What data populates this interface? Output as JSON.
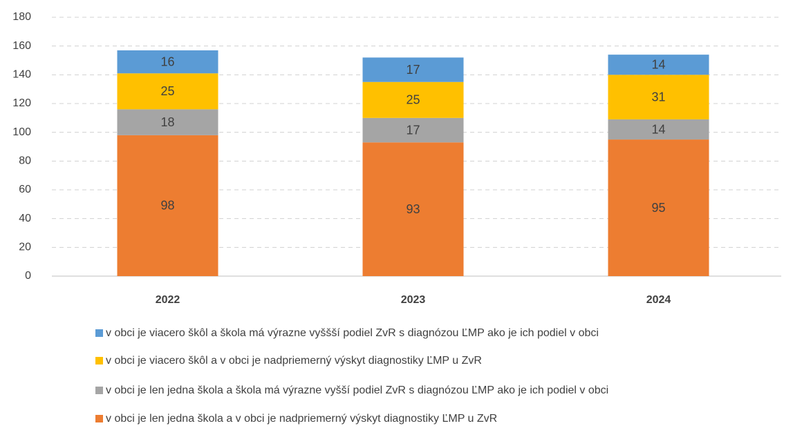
{
  "chart_data": {
    "type": "stacked_bar",
    "categories": [
      "2022",
      "2023",
      "2024"
    ],
    "series": [
      {
        "name": "v obci je len jedna škola a v obci je nadpriemerný výskyt diagnostiky ĽMP u ZvR",
        "color": "#ed7d31",
        "values": [
          98,
          93,
          95
        ]
      },
      {
        "name": "v obci je len jedna škola a škola má výrazne vyšší podiel ZvR s diagnózou ĽMP ako je ich podiel v obci",
        "color": "#a5a5a5",
        "values": [
          18,
          17,
          14
        ]
      },
      {
        "name": "v obci je viacero škôl a v obci je nadpriemerný výskyt diagnostiky ĽMP u ZvR",
        "color": "#ffc000",
        "values": [
          25,
          25,
          31
        ]
      },
      {
        "name": "v obci je viacero škôl a škola má výrazne vyššší podiel ZvR s diagnózou ĽMP ako je ich podiel v obci",
        "color": "#5b9bd5",
        "values": [
          16,
          17,
          14
        ]
      }
    ],
    "ylim": [
      0,
      180
    ],
    "yticks": [
      0,
      20,
      40,
      60,
      80,
      100,
      120,
      140,
      160,
      180
    ],
    "grid": true
  }
}
